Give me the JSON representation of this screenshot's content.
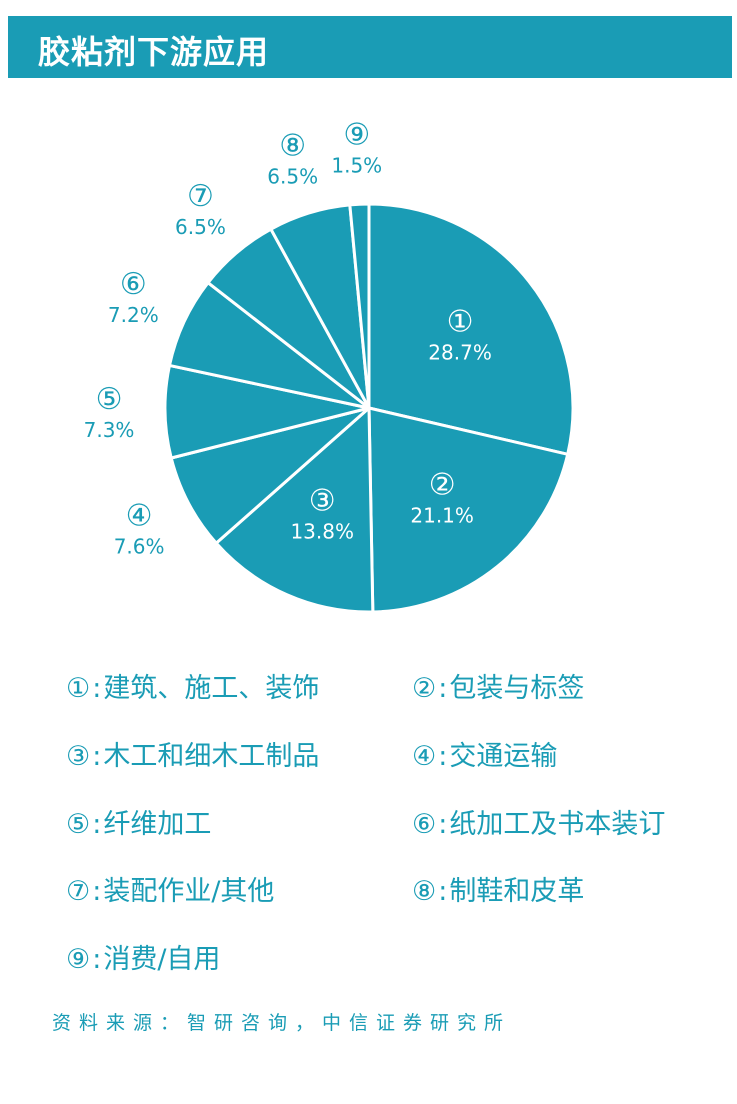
{
  "header": {
    "title": "胶粘剂下游应用"
  },
  "chart_data": {
    "type": "pie",
    "title": "",
    "slices": [
      {
        "num": "①",
        "value": 28.7,
        "label": "28.7%"
      },
      {
        "num": "②",
        "value": 21.1,
        "label": "21.1%"
      },
      {
        "num": "③",
        "value": 13.8,
        "label": "13.8%"
      },
      {
        "num": "④",
        "value": 7.6,
        "label": "7.6%"
      },
      {
        "num": "⑤",
        "value": 7.3,
        "label": "7.3%"
      },
      {
        "num": "⑥",
        "value": 7.2,
        "label": "7.2%"
      },
      {
        "num": "⑦",
        "value": 6.5,
        "label": "6.5%"
      },
      {
        "num": "⑧",
        "value": 6.5,
        "label": "6.5%"
      },
      {
        "num": "⑨",
        "value": 1.5,
        "label": "1.5%"
      }
    ],
    "colors": {
      "fill": "#1a9cb5",
      "stroke": "#ffffff",
      "label_inside": "#ffffff",
      "label_outside": "#1a9cb5"
    }
  },
  "legend": [
    {
      "num": "①",
      "sep": ":",
      "text": "建筑、施工、装饰"
    },
    {
      "num": "②",
      "sep": ":",
      "text": "包装与标签"
    },
    {
      "num": "③",
      "sep": ":",
      "text": "木工和细木工制品"
    },
    {
      "num": "④",
      "sep": ":",
      "text": "交通运输"
    },
    {
      "num": "⑤",
      "sep": ":",
      "text": "纤维加工"
    },
    {
      "num": "⑥",
      "sep": ":",
      "text": "纸加工及书本装订"
    },
    {
      "num": "⑦",
      "sep": ":",
      "text": "装配作业/其他"
    },
    {
      "num": "⑧",
      "sep": ":",
      "text": "制鞋和皮革"
    },
    {
      "num": "⑨",
      "sep": ":",
      "text": "消费/自用"
    }
  ],
  "source": "资料来源：智研咨询，中信证券研究所"
}
